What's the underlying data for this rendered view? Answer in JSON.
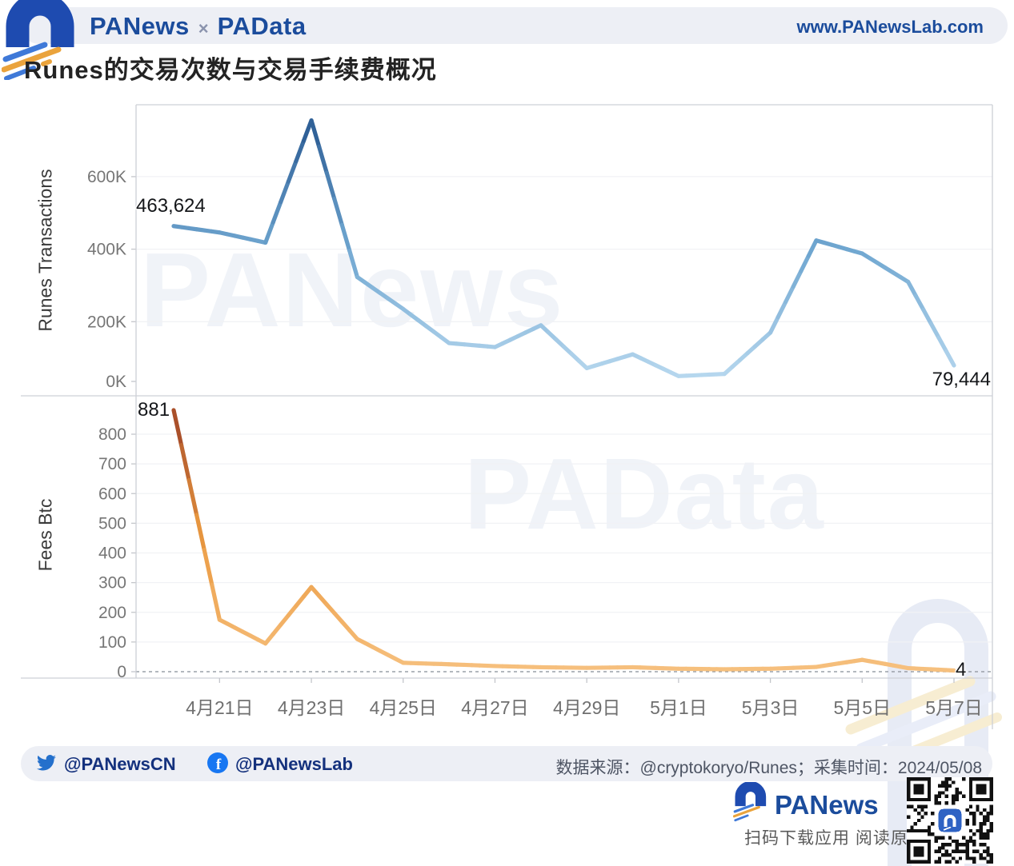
{
  "header": {
    "brand_left": "PANews",
    "brand_separator": "×",
    "brand_right": "PAData",
    "website": "www.PANewsLab.com"
  },
  "title": "Runes的交易次数与交易手续费概况",
  "colors": {
    "brand_blue": "#1b4c9c",
    "header_bg": "#edeff5",
    "twitter_blue": "#2470cc",
    "facebook_blue": "#1877f2",
    "transactions_high": "#2a5a92",
    "transactions_low": "#b6d7ee",
    "fees_high": "#a04426",
    "fees_low": "#f6c07e"
  },
  "chart_data": [
    {
      "type": "line",
      "name": "runes-transactions",
      "ylabel": "Runes Transactions",
      "x": [
        "4月20日",
        "4月21日",
        "4月22日",
        "4月23日",
        "4月24日",
        "4月25日",
        "4月26日",
        "4月27日",
        "4月28日",
        "4月29日",
        "4月30日",
        "5月1日",
        "5月2日",
        "5月3日",
        "5月4日",
        "5月5日",
        "5月6日",
        "5月7日"
      ],
      "values": [
        463624,
        446000,
        418000,
        755000,
        323000,
        235000,
        141000,
        130000,
        190000,
        72000,
        110000,
        50000,
        56000,
        170000,
        424000,
        388000,
        310000,
        79444
      ],
      "ylim": [
        0,
        800000
      ],
      "grid": true,
      "legend": "none",
      "y_ticks": {
        "values": [
          0,
          200000,
          400000,
          600000
        ],
        "labels": [
          "0K",
          "200K",
          "400K",
          "600K"
        ]
      },
      "x_tick_indices": [
        1,
        3,
        5,
        7,
        9,
        11,
        13,
        15,
        17
      ],
      "x_tick_labels": [
        "4月21日",
        "4月23日",
        "4月25日",
        "4月27日",
        "4月29日",
        "5月1日",
        "5月3日",
        "5月5日",
        "5月7日"
      ],
      "color_stops": [
        "#b6d7ee",
        "#6fa6d0",
        "#2a5a92"
      ],
      "first_label": "463,624",
      "last_label": "79,444"
    },
    {
      "type": "line",
      "name": "fees-btc",
      "ylabel": "Fees Btc",
      "x": [
        "4月20日",
        "4月21日",
        "4月22日",
        "4月23日",
        "4月24日",
        "4月25日",
        "4月26日",
        "4月27日",
        "4月28日",
        "4月29日",
        "4月30日",
        "5月1日",
        "5月2日",
        "5月3日",
        "5月4日",
        "5月5日",
        "5月6日",
        "5月7日"
      ],
      "values": [
        881,
        175,
        95,
        285,
        110,
        30,
        25,
        19,
        15,
        13,
        15,
        10,
        8,
        10,
        16,
        40,
        12,
        4
      ],
      "ylim": [
        0,
        900
      ],
      "grid": true,
      "legend": "none",
      "zero_line": "dashed",
      "y_ticks": {
        "values": [
          0,
          100,
          200,
          300,
          400,
          500,
          600,
          700,
          800
        ],
        "labels": [
          "0",
          "100",
          "200",
          "300",
          "400",
          "500",
          "600",
          "700",
          "800"
        ]
      },
      "x_tick_indices": [
        1,
        3,
        5,
        7,
        9,
        11,
        13,
        15,
        17
      ],
      "x_tick_labels": [
        "4月21日",
        "4月23日",
        "4月25日",
        "4月27日",
        "4月29日",
        "5月1日",
        "5月3日",
        "5月5日",
        "5月7日"
      ],
      "color_stops": [
        "#f6c07e",
        "#eb9a41",
        "#a04426"
      ],
      "first_label": "881",
      "last_label": "4"
    }
  ],
  "watermarks": {
    "top": "PANews",
    "bottom": "PAData"
  },
  "footer": {
    "twitter_handle": "@PANewsCN",
    "facebook_handle": "@PANewsLab",
    "source_note": "数据来源：@cryptokoryo/Runes；采集时间：2024/05/08"
  },
  "branding": {
    "wordmark": "PANews",
    "qr_caption": "扫码下载应用 阅读原文"
  }
}
